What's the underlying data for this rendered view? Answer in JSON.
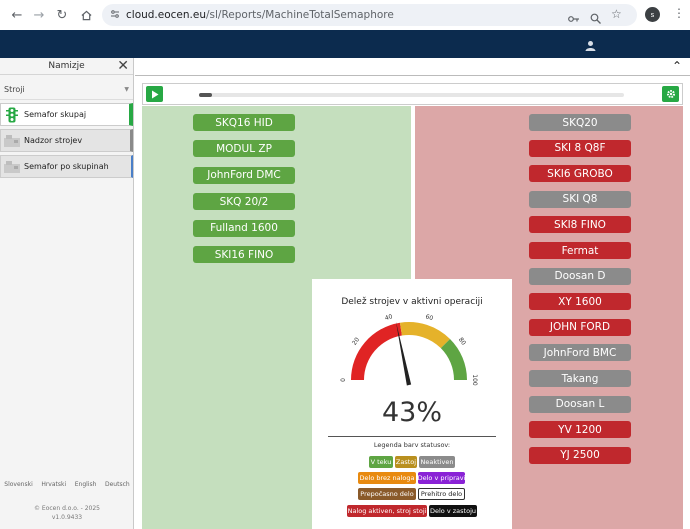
{
  "browser": {
    "url_host": "cloud.eocen.eu",
    "url_path": "/sl/Reports/MachineTotalSemaphore",
    "profile_letter": "s"
  },
  "sidebar": {
    "title": "Namizje",
    "section_label": "Stroji",
    "items": [
      {
        "label": "Semafor skupaj",
        "active": true,
        "icon": "traffic-light-icon"
      },
      {
        "label": "Nadzor strojev",
        "active": false,
        "icon": "machine-icon"
      },
      {
        "label": "Semafor po skupinah",
        "active": false,
        "icon": "machine-icon"
      }
    ],
    "languages": [
      "Slovenski",
      "Hrvatski",
      "English",
      "Deutsch"
    ],
    "copyright": "© Eocen d.o.o. - 2025",
    "version": "v1.0.9433"
  },
  "toolbar": {
    "progress": 0.03
  },
  "active_machines": [
    "SKQ16 HID",
    "MODUL ZP",
    "JohnFord DMC",
    "SKQ 20/2",
    "Fulland 1600",
    "SKI16 FINO"
  ],
  "inactive_machines": [
    {
      "name": "SKQ20",
      "status": "gray"
    },
    {
      "name": "SKI 8 Q8F",
      "status": "red"
    },
    {
      "name": "SKI6 GROBO",
      "status": "red"
    },
    {
      "name": "SKI Q8",
      "status": "gray"
    },
    {
      "name": "SKI8 FINO",
      "status": "red"
    },
    {
      "name": "Fermat",
      "status": "red"
    },
    {
      "name": "Doosan D",
      "status": "gray"
    },
    {
      "name": "XY 1600",
      "status": "red"
    },
    {
      "name": "JOHN FORD",
      "status": "red"
    },
    {
      "name": "JohnFord BMC",
      "status": "gray"
    },
    {
      "name": "Takang",
      "status": "gray"
    },
    {
      "name": "Doosan L",
      "status": "gray"
    },
    {
      "name": "YV 1200",
      "status": "red"
    },
    {
      "name": "YJ 2500",
      "status": "red"
    }
  ],
  "gauge": {
    "title": "Delež strojev v aktivni operaciji",
    "value": 43,
    "value_text": "43%",
    "ticks": [
      "0",
      "20",
      "40",
      "60",
      "80",
      "100"
    ],
    "bands": [
      {
        "from": 0,
        "to": 45,
        "color": "#e02424"
      },
      {
        "from": 45,
        "to": 75,
        "color": "#e5b22a"
      },
      {
        "from": 75,
        "to": 100,
        "color": "#5ea543"
      }
    ]
  },
  "legend": {
    "title": "Legenda barv statusov:",
    "items": [
      {
        "label": "V teku",
        "color": "#5ea543"
      },
      {
        "label": "Zastoj",
        "color": "#b9901f"
      },
      {
        "label": "Neaktiven",
        "color": "#8b8b8b"
      },
      {
        "label": "Delo brez naloga",
        "color": "#e88a10"
      },
      {
        "label": "Delo v pripravi",
        "color": "#8a22d6"
      },
      {
        "label": "Prepočasno delo",
        "color": "#8a5a2a"
      },
      {
        "label": "Prehitro delo",
        "color": "#ffffff"
      },
      {
        "label": "Nalog aktiven, stroj stoji",
        "color": "#c0282d"
      },
      {
        "label": "Delo v zastoju",
        "color": "#111111"
      }
    ]
  }
}
